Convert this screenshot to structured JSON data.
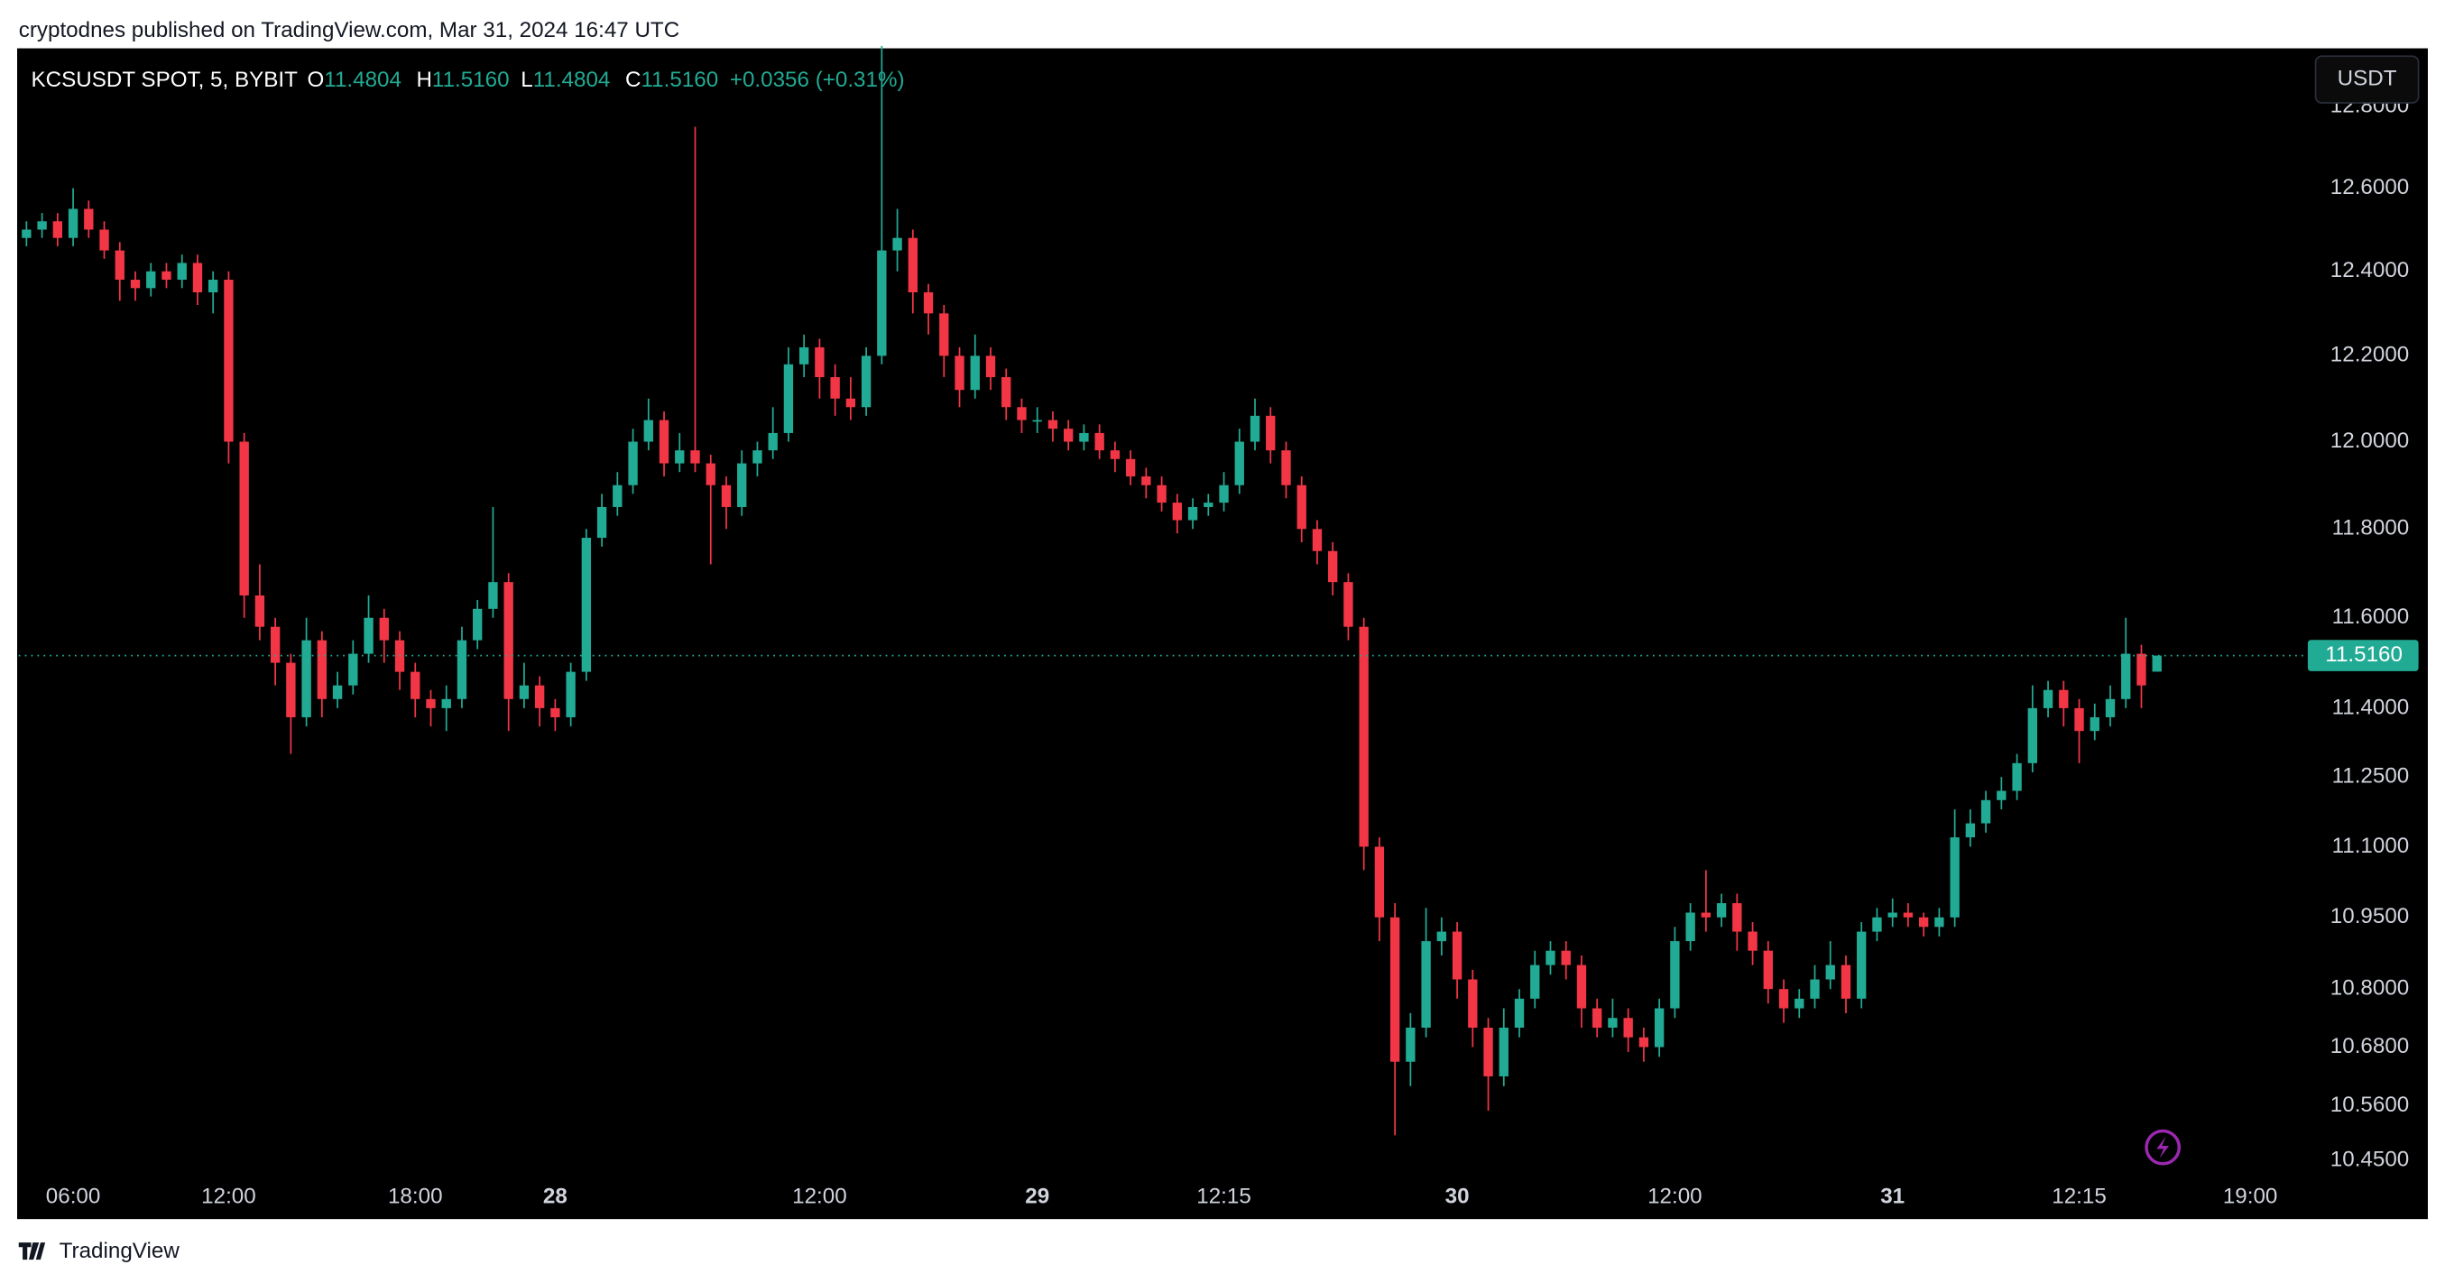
{
  "header": {
    "publisher": "cryptodnes published on TradingView.com, Mar 31, 2024 16:47 UTC",
    "symbol": "KCSUSDT SPOT, 5, BYBIT",
    "open_key": "O",
    "open": "11.4804",
    "high_key": "H",
    "high": "11.5160",
    "low_key": "L",
    "low": "11.4804",
    "close_key": "C",
    "close": "11.5160",
    "change": "+0.0356 (+0.31%)",
    "currency": "USDT",
    "brand": "TradingView"
  },
  "chart_data": {
    "type": "candlestick",
    "log_scale": true,
    "grid": false,
    "up_color": "#22ab94",
    "down_color": "#f23645",
    "background": "#000000",
    "ylim": [
      10.41,
      12.94
    ],
    "yticks": [
      {
        "value": 10.45,
        "label": "10.4500"
      },
      {
        "value": 10.56,
        "label": "10.5600"
      },
      {
        "value": 10.68,
        "label": "10.6800"
      },
      {
        "value": 10.8,
        "label": "10.8000"
      },
      {
        "value": 10.95,
        "label": "10.9500"
      },
      {
        "value": 11.1,
        "label": "11.1000"
      },
      {
        "value": 11.25,
        "label": "11.2500"
      },
      {
        "value": 11.4,
        "label": "11.4000"
      },
      {
        "value": 11.6,
        "label": "11.6000"
      },
      {
        "value": 11.8,
        "label": "11.8000"
      },
      {
        "value": 12,
        "label": "12.0000"
      },
      {
        "value": 12.2,
        "label": "12.2000"
      },
      {
        "value": 12.4,
        "label": "12.4000"
      },
      {
        "value": 12.6,
        "label": "12.6000"
      },
      {
        "value": 12.8,
        "label": "12.8000"
      }
    ],
    "price_line": {
      "value": 11.516,
      "label": "11.5160"
    },
    "categories": [
      null,
      null,
      null,
      "06:00",
      null,
      null,
      null,
      null,
      null,
      null,
      null,
      null,
      null,
      "12:00",
      null,
      null,
      null,
      null,
      null,
      null,
      null,
      null,
      null,
      null,
      null,
      "18:00",
      null,
      null,
      null,
      null,
      null,
      null,
      null,
      null,
      "28",
      null,
      null,
      null,
      null,
      null,
      null,
      null,
      null,
      null,
      null,
      null,
      null,
      null,
      null,
      null,
      null,
      "12:00",
      null,
      null,
      null,
      null,
      null,
      null,
      null,
      null,
      null,
      null,
      null,
      null,
      null,
      "29",
      null,
      null,
      null,
      null,
      null,
      null,
      null,
      null,
      null,
      null,
      null,
      "12:15",
      null,
      null,
      null,
      null,
      null,
      null,
      null,
      null,
      null,
      null,
      null,
      null,
      null,
      null,
      "30",
      null,
      null,
      null,
      null,
      null,
      null,
      null,
      null,
      null,
      null,
      null,
      null,
      null,
      "12:00",
      null,
      null,
      null,
      null,
      null,
      null,
      null,
      null,
      null,
      null,
      null,
      null,
      null,
      "31",
      null,
      null,
      null,
      null,
      null,
      null,
      null,
      null,
      null,
      null,
      null,
      "12:15",
      null,
      null,
      null,
      null,
      null,
      null,
      null,
      null,
      null,
      null,
      "19:00",
      null,
      null,
      null
    ],
    "open": [
      12.48,
      12.5,
      12.52,
      12.48,
      12.55,
      12.5,
      12.45,
      12.38,
      12.36,
      12.4,
      12.38,
      12.42,
      12.35,
      12.38,
      12.0,
      11.65,
      11.58,
      11.5,
      11.38,
      11.55,
      11.42,
      11.45,
      11.52,
      11.6,
      11.55,
      11.48,
      11.42,
      11.4,
      11.42,
      11.55,
      11.62,
      11.68,
      11.42,
      11.45,
      11.4,
      11.38,
      11.48,
      11.78,
      11.85,
      11.9,
      12.0,
      12.05,
      11.95,
      11.98,
      11.95,
      11.9,
      11.85,
      11.95,
      11.98,
      12.02,
      12.18,
      12.22,
      12.15,
      12.1,
      12.08,
      12.2,
      12.45,
      12.48,
      12.35,
      12.3,
      12.2,
      12.12,
      12.2,
      12.15,
      12.08,
      12.05,
      12.05,
      12.03,
      12.0,
      12.02,
      11.98,
      11.96,
      11.92,
      11.9,
      11.86,
      11.82,
      11.85,
      11.86,
      11.9,
      12.0,
      12.06,
      11.98,
      11.9,
      11.8,
      11.75,
      11.68,
      11.58,
      11.1,
      10.95,
      10.65,
      10.72,
      10.9,
      10.92,
      10.82,
      10.72,
      10.62,
      10.72,
      10.78,
      10.85,
      10.88,
      10.85,
      10.76,
      10.72,
      10.74,
      10.7,
      10.68,
      10.76,
      10.9,
      10.96,
      10.95,
      10.98,
      10.92,
      10.88,
      10.8,
      10.76,
      10.78,
      10.82,
      10.85,
      10.78,
      10.92,
      10.95,
      10.96,
      10.95,
      10.93,
      10.95,
      11.12,
      11.15,
      11.2,
      11.22,
      11.28,
      11.4,
      11.44,
      11.4,
      11.35,
      11.38,
      11.42,
      11.52,
      11.4804,
      null,
      null,
      null,
      null,
      null,
      null,
      null,
      null,
      null
    ],
    "high": [
      12.52,
      12.54,
      12.54,
      12.6,
      12.57,
      12.52,
      12.47,
      12.4,
      12.42,
      12.42,
      12.44,
      12.44,
      12.4,
      12.4,
      12.02,
      11.72,
      11.6,
      11.52,
      11.6,
      11.57,
      11.48,
      11.55,
      11.65,
      11.62,
      11.57,
      11.5,
      11.44,
      11.45,
      11.58,
      11.64,
      11.85,
      11.7,
      11.5,
      11.47,
      11.42,
      11.5,
      11.8,
      11.88,
      11.93,
      12.03,
      12.1,
      12.07,
      12.02,
      12.75,
      11.97,
      11.92,
      11.98,
      12.0,
      12.08,
      12.22,
      12.25,
      12.24,
      12.18,
      12.15,
      12.22,
      12.95,
      12.55,
      12.5,
      12.37,
      12.32,
      12.22,
      12.25,
      12.22,
      12.17,
      12.1,
      12.08,
      12.07,
      12.05,
      12.04,
      12.04,
      12.0,
      11.98,
      11.94,
      11.92,
      11.88,
      11.87,
      11.88,
      11.93,
      12.03,
      12.1,
      12.08,
      12.0,
      11.92,
      11.82,
      11.77,
      11.7,
      11.6,
      11.12,
      10.98,
      10.75,
      10.97,
      10.95,
      10.94,
      10.84,
      10.74,
      10.76,
      10.8,
      10.88,
      10.9,
      10.9,
      10.87,
      10.78,
      10.78,
      10.76,
      10.72,
      10.78,
      10.93,
      10.98,
      11.05,
      11.0,
      11.0,
      10.94,
      10.9,
      10.82,
      10.8,
      10.85,
      10.9,
      10.87,
      10.94,
      10.97,
      10.99,
      10.98,
      10.96,
      10.97,
      11.18,
      11.18,
      11.22,
      11.25,
      11.3,
      11.45,
      11.46,
      11.46,
      11.42,
      11.41,
      11.45,
      11.6,
      11.54,
      11.516,
      null,
      null,
      null,
      null,
      null,
      null,
      null,
      null,
      null
    ],
    "low": [
      12.46,
      12.48,
      12.46,
      12.46,
      12.48,
      12.43,
      12.33,
      12.33,
      12.34,
      12.36,
      12.36,
      12.32,
      12.3,
      11.95,
      11.6,
      11.55,
      11.45,
      11.3,
      11.36,
      11.38,
      11.4,
      11.43,
      11.5,
      11.5,
      11.44,
      11.38,
      11.36,
      11.35,
      11.4,
      11.53,
      11.6,
      11.35,
      11.4,
      11.36,
      11.35,
      11.36,
      11.46,
      11.76,
      11.83,
      11.88,
      11.98,
      11.92,
      11.93,
      11.93,
      11.72,
      11.8,
      11.83,
      11.92,
      11.96,
      12.0,
      12.15,
      12.1,
      12.06,
      12.05,
      12.06,
      12.18,
      12.4,
      12.3,
      12.25,
      12.15,
      12.08,
      12.1,
      12.12,
      12.05,
      12.02,
      12.02,
      12.0,
      11.98,
      11.98,
      11.96,
      11.93,
      11.9,
      11.87,
      11.84,
      11.79,
      11.8,
      11.83,
      11.84,
      11.88,
      11.98,
      11.95,
      11.87,
      11.77,
      11.72,
      11.65,
      11.55,
      11.05,
      10.9,
      10.5,
      10.6,
      10.7,
      10.87,
      10.78,
      10.68,
      10.55,
      10.6,
      10.7,
      10.76,
      10.83,
      10.82,
      10.72,
      10.7,
      10.7,
      10.67,
      10.65,
      10.66,
      10.74,
      10.88,
      10.92,
      10.93,
      10.88,
      10.85,
      10.77,
      10.73,
      10.74,
      10.76,
      10.8,
      10.75,
      10.76,
      10.9,
      10.93,
      10.93,
      10.91,
      10.91,
      10.93,
      11.1,
      11.13,
      11.18,
      11.2,
      11.26,
      11.38,
      11.36,
      11.28,
      11.33,
      11.36,
      11.4,
      11.4,
      11.4804,
      null,
      null,
      null,
      null,
      null,
      null,
      null,
      null,
      null
    ],
    "close": [
      12.5,
      12.52,
      12.48,
      12.55,
      12.5,
      12.45,
      12.38,
      12.36,
      12.4,
      12.38,
      12.42,
      12.35,
      12.38,
      12.0,
      11.65,
      11.58,
      11.5,
      11.38,
      11.55,
      11.42,
      11.45,
      11.52,
      11.6,
      11.55,
      11.48,
      11.42,
      11.4,
      11.42,
      11.55,
      11.62,
      11.68,
      11.42,
      11.45,
      11.4,
      11.38,
      11.48,
      11.78,
      11.85,
      11.9,
      12.0,
      12.05,
      11.95,
      11.98,
      11.95,
      11.9,
      11.85,
      11.95,
      11.98,
      12.02,
      12.18,
      12.22,
      12.15,
      12.1,
      12.08,
      12.2,
      12.45,
      12.48,
      12.35,
      12.3,
      12.2,
      12.12,
      12.2,
      12.15,
      12.08,
      12.05,
      12.05,
      12.03,
      12.0,
      12.02,
      11.98,
      11.96,
      11.92,
      11.9,
      11.86,
      11.82,
      11.85,
      11.86,
      11.9,
      12.0,
      12.06,
      11.98,
      11.9,
      11.8,
      11.75,
      11.68,
      11.58,
      11.1,
      10.95,
      10.65,
      10.72,
      10.9,
      10.92,
      10.82,
      10.72,
      10.62,
      10.72,
      10.78,
      10.85,
      10.88,
      10.85,
      10.76,
      10.72,
      10.74,
      10.7,
      10.68,
      10.76,
      10.9,
      10.96,
      10.95,
      10.98,
      10.92,
      10.88,
      10.8,
      10.76,
      10.78,
      10.82,
      10.85,
      10.78,
      10.92,
      10.95,
      10.96,
      10.95,
      10.93,
      10.95,
      11.12,
      11.15,
      11.2,
      11.22,
      11.28,
      11.4,
      11.44,
      11.4,
      11.35,
      11.38,
      11.42,
      11.52,
      11.45,
      11.516,
      null,
      null,
      null,
      null,
      null,
      null,
      null,
      null,
      null
    ]
  }
}
